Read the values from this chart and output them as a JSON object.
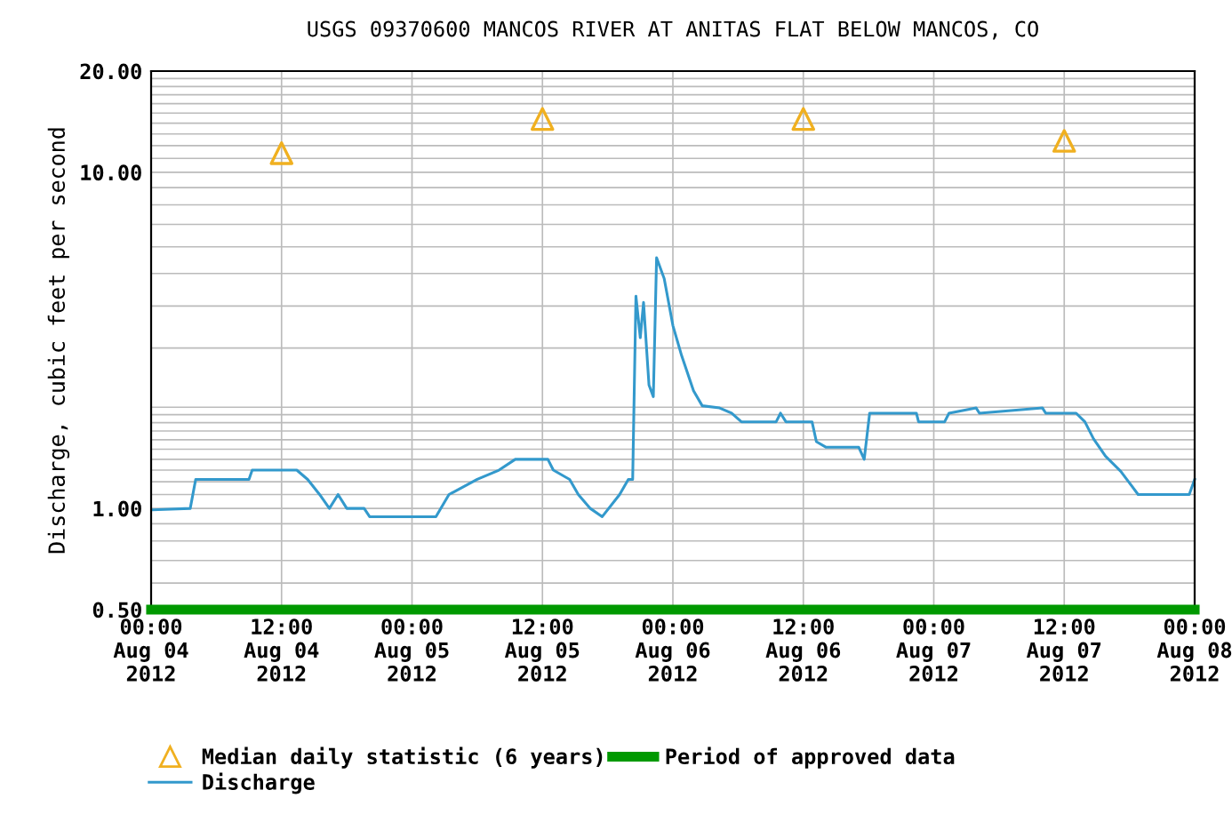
{
  "chart_data": {
    "type": "line",
    "title": "USGS 09370600 MANCOS RIVER AT ANITAS FLAT BELOW MANCOS, CO",
    "ylabel": "Discharge, cubic feet per second",
    "log": "y",
    "grid": true,
    "legend": "bottom",
    "xlim": [
      "2012-08-04T00:00",
      "2012-08-08T00:00"
    ],
    "xticks": [
      {
        "value": "2012-08-04T00:00",
        "label": "00:00\nAug 04\n2012"
      },
      {
        "value": "2012-08-04T12:00",
        "label": "12:00\nAug 04\n2012"
      },
      {
        "value": "2012-08-05T00:00",
        "label": "00:00\nAug 05\n2012"
      },
      {
        "value": "2012-08-05T12:00",
        "label": "12:00\nAug 05\n2012"
      },
      {
        "value": "2012-08-06T00:00",
        "label": "00:00\nAug 06\n2012"
      },
      {
        "value": "2012-08-06T12:00",
        "label": "12:00\nAug 06\n2012"
      },
      {
        "value": "2012-08-07T00:00",
        "label": "00:00\nAug 07\n2012"
      },
      {
        "value": "2012-08-07T12:00",
        "label": "12:00\nAug 07\n2012"
      },
      {
        "value": "2012-08-08T00:00",
        "label": "00:00\nAug 08\n2012"
      }
    ],
    "ylim": [
      0.5,
      20
    ],
    "yticks": [
      {
        "value": 0.5,
        "label": "0.50"
      },
      {
        "value": 1,
        "label": "1.00"
      },
      {
        "value": 10,
        "label": "10.00"
      },
      {
        "value": 20,
        "label": "20.00"
      }
    ],
    "series": [
      {
        "name": "Median daily statistic (6 years)",
        "type": "scatter",
        "marker": "triangle",
        "color": "#f0b020",
        "x": [
          "2012-08-04T12:00",
          "2012-08-05T12:00",
          "2012-08-06T12:00",
          "2012-08-07T12:00"
        ],
        "values": [
          11.4,
          14.4,
          14.4,
          12.4
        ]
      },
      {
        "name": "Period of approved data",
        "type": "line",
        "color": "#009900",
        "x": [
          "2012-08-04T00:00",
          "2012-08-08T00:00"
        ],
        "values": [
          0.5,
          0.5
        ]
      },
      {
        "name": "Discharge",
        "color": "#3399cc",
        "x": [
          "2012-08-04T00:12",
          "2012-08-04T03:36",
          "2012-08-04T04:06",
          "2012-08-04T09:00",
          "2012-08-04T09:18",
          "2012-08-04T13:24",
          "2012-08-04T14:24",
          "2012-08-04T15:30",
          "2012-08-04T16:24",
          "2012-08-04T17:12",
          "2012-08-04T18:00",
          "2012-08-04T19:36",
          "2012-08-04T20:06",
          "2012-08-05T02:12",
          "2012-08-05T03:24",
          "2012-08-05T06:00",
          "2012-08-05T08:00",
          "2012-08-05T09:30",
          "2012-08-05T12:30",
          "2012-08-05T13:00",
          "2012-08-05T14:30",
          "2012-08-05T15:18",
          "2012-08-05T16:24",
          "2012-08-05T17:30",
          "2012-08-05T19:06",
          "2012-08-05T19:54",
          "2012-08-05T20:18",
          "2012-08-05T20:36",
          "2012-08-05T21:00",
          "2012-08-05T21:18",
          "2012-08-05T21:48",
          "2012-08-05T22:12",
          "2012-08-05T22:30",
          "2012-08-05T23:12",
          "2012-08-06T00:00",
          "2012-08-06T00:48",
          "2012-08-06T01:54",
          "2012-08-06T02:42",
          "2012-08-06T04:18",
          "2012-08-06T05:24",
          "2012-08-06T06:18",
          "2012-08-06T09:30",
          "2012-08-06T09:54",
          "2012-08-06T10:24",
          "2012-08-06T12:48",
          "2012-08-06T13:12",
          "2012-08-06T14:06",
          "2012-08-06T17:06",
          "2012-08-06T17:36",
          "2012-08-06T18:06",
          "2012-08-06T22:24",
          "2012-08-06T22:36",
          "2012-08-07T01:00",
          "2012-08-07T01:24",
          "2012-08-07T03:54",
          "2012-08-07T04:12",
          "2012-08-07T10:00",
          "2012-08-07T10:18",
          "2012-08-07T13:06",
          "2012-08-07T13:54",
          "2012-08-07T14:42",
          "2012-08-07T15:48",
          "2012-08-07T17:12",
          "2012-08-07T18:48",
          "2012-08-07T23:30",
          "2012-08-08T00:00"
        ],
        "values": [
          0.99,
          1.0,
          1.22,
          1.22,
          1.3,
          1.3,
          1.22,
          1.1,
          1.0,
          1.1,
          1.0,
          1.0,
          0.945,
          0.945,
          1.1,
          1.22,
          1.3,
          1.4,
          1.4,
          1.3,
          1.22,
          1.1,
          1.0,
          0.945,
          1.1,
          1.22,
          1.22,
          4.28,
          3.22,
          4.1,
          2.33,
          2.15,
          5.57,
          4.83,
          3.5,
          2.85,
          2.24,
          2.02,
          1.99,
          1.92,
          1.81,
          1.81,
          1.92,
          1.81,
          1.81,
          1.58,
          1.52,
          1.52,
          1.4,
          1.92,
          1.92,
          1.81,
          1.81,
          1.92,
          1.99,
          1.92,
          1.99,
          1.92,
          1.92,
          1.81,
          1.61,
          1.43,
          1.29,
          1.1,
          1.1,
          1.22
        ]
      }
    ]
  }
}
